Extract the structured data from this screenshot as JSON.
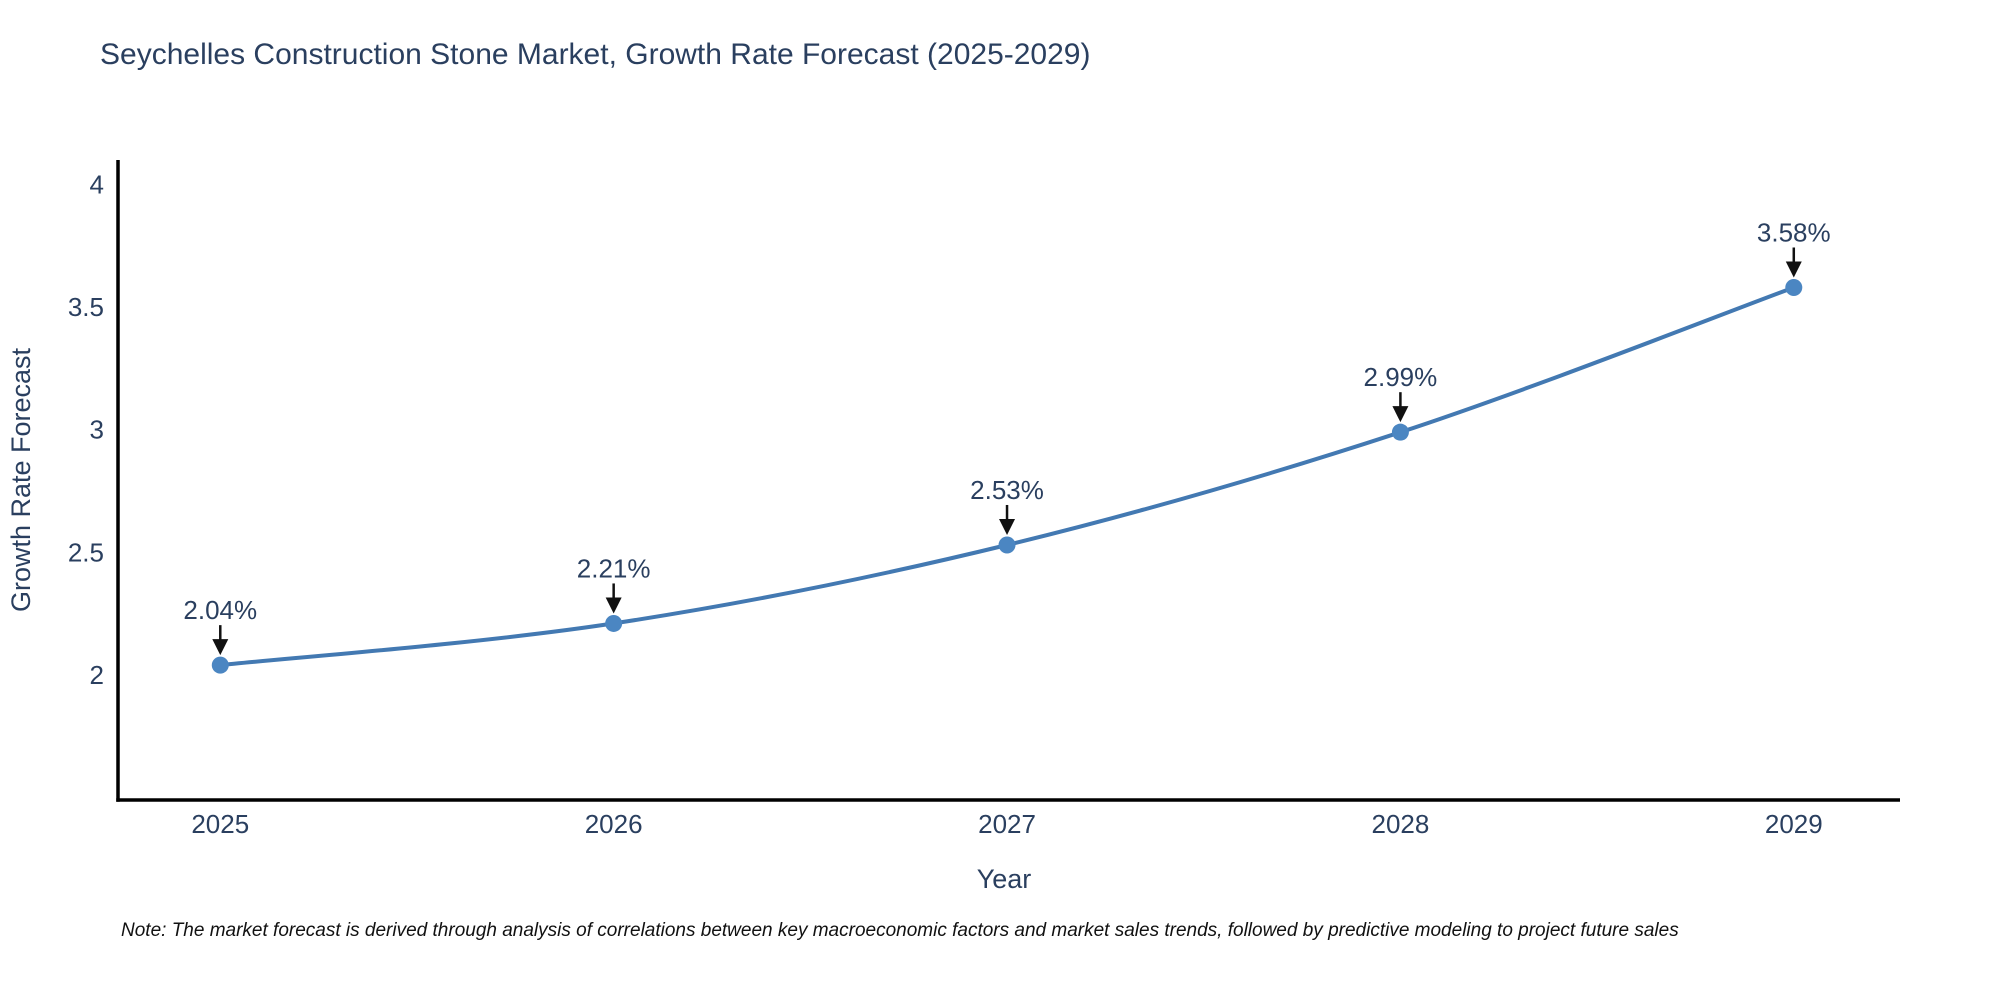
{
  "chart_data": {
    "type": "line",
    "title": "Seychelles Construction Stone Market, Growth Rate Forecast (2025-2029)",
    "x": [
      2025,
      2026,
      2027,
      2028,
      2029
    ],
    "values": [
      2.04,
      2.21,
      2.53,
      2.99,
      3.58
    ],
    "labels": [
      "2.04%",
      "2.21%",
      "2.53%",
      "2.99%",
      "3.58%"
    ],
    "xlabel": "Year",
    "ylabel": "Growth Rate Forecast",
    "yticks": [
      2,
      2.5,
      3,
      3.5,
      4
    ],
    "xlim": [
      2024.74,
      2029.27
    ],
    "ylim": [
      1.49,
      4.1
    ],
    "grid": false,
    "legend": false,
    "line_color": "#4379b2",
    "marker_color": "#4b86c2",
    "text_color": "#2a3f5f",
    "axis_color": "#000000",
    "annotation_arrow_color": "#111111"
  },
  "note": "Note: The market forecast is derived through analysis of correlations between key macroeconomic factors and market sales trends, followed by predictive modeling to project future sales"
}
